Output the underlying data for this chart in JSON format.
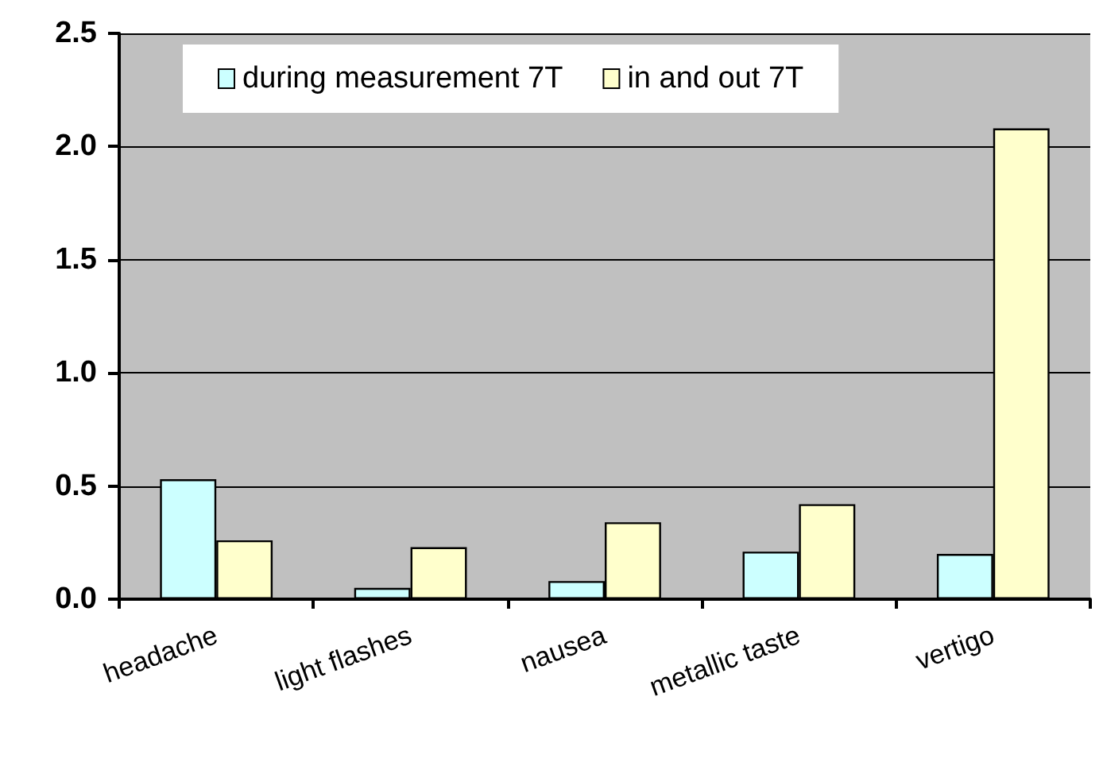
{
  "chart_data": {
    "type": "bar",
    "categories": [
      "headache",
      "light flashes",
      "nausea",
      "metallic taste",
      "vertigo"
    ],
    "series": [
      {
        "name": "during measurement 7T",
        "color": "#ccffff",
        "values": [
          0.53,
          0.05,
          0.08,
          0.21,
          0.2
        ]
      },
      {
        "name": "in and out 7T",
        "color": "#ffffcc",
        "values": [
          0.26,
          0.23,
          0.34,
          0.42,
          2.08
        ]
      }
    ],
    "ylim": [
      0,
      2.5
    ],
    "yticks": [
      {
        "value": 0,
        "label": "0.0"
      },
      {
        "value": 0.5,
        "label": "0.5"
      },
      {
        "value": 1,
        "label": "1.0"
      },
      {
        "value": 1.5,
        "label": "1.5"
      },
      {
        "value": 2,
        "label": "2.0"
      },
      {
        "value": 2.5,
        "label": "2.5"
      }
    ],
    "grid": "y",
    "legend": "top"
  }
}
